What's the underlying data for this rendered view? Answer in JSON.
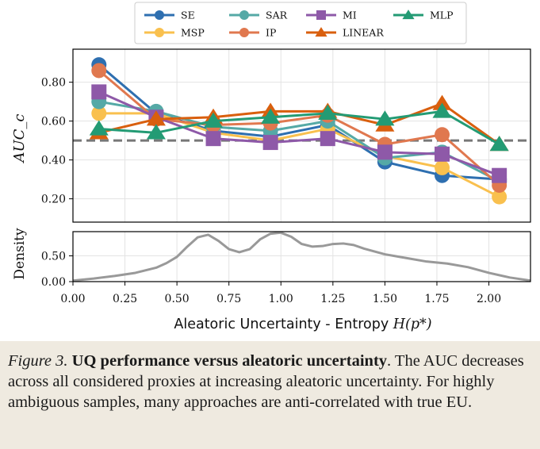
{
  "chart_data": [
    {
      "type": "line",
      "panel": "upper",
      "ylabel": "AUC_c",
      "ylim": [
        0.08,
        0.97
      ],
      "yticks": [
        0.2,
        0.4,
        0.6,
        0.8
      ],
      "ytick_labels": [
        "0.20",
        "0.40",
        "0.60",
        "0.80"
      ],
      "xlim": [
        0.0,
        2.2
      ],
      "grid": true,
      "reference_line": 0.5,
      "legend_position": "top",
      "x": [
        0.125,
        0.4,
        0.675,
        0.95,
        1.225,
        1.5,
        1.775,
        2.05
      ],
      "series": [
        {
          "name": "SE",
          "color": "#2e6fb0",
          "marker": "circle",
          "values": [
            0.89,
            0.64,
            0.55,
            0.52,
            0.58,
            0.39,
            0.32,
            0.3
          ]
        },
        {
          "name": "MSP",
          "color": "#f9c04e",
          "marker": "circle",
          "values": [
            0.64,
            0.64,
            0.54,
            0.5,
            0.56,
            0.42,
            0.36,
            0.21
          ]
        },
        {
          "name": "SAR",
          "color": "#55a9a6",
          "marker": "circle",
          "values": [
            0.7,
            0.65,
            0.57,
            0.55,
            0.6,
            0.41,
            0.44,
            0.29
          ]
        },
        {
          "name": "IP",
          "color": "#e0784f",
          "marker": "circle",
          "values": [
            0.86,
            0.61,
            0.58,
            0.59,
            0.63,
            0.48,
            0.53,
            0.27
          ]
        },
        {
          "name": "MI",
          "color": "#8e59a8",
          "marker": "square",
          "values": [
            0.75,
            0.62,
            0.51,
            0.49,
            0.51,
            0.44,
            0.43,
            0.32
          ]
        },
        {
          "name": "LINEAR",
          "color": "#d95f0e",
          "marker": "triangle",
          "values": [
            0.54,
            0.61,
            0.62,
            0.65,
            0.65,
            0.58,
            0.69,
            0.48
          ]
        },
        {
          "name": "MLP",
          "color": "#239b74",
          "marker": "triangle",
          "values": [
            0.56,
            0.54,
            0.6,
            0.62,
            0.64,
            0.61,
            0.65,
            0.48
          ]
        }
      ]
    },
    {
      "type": "line",
      "panel": "lower",
      "ylabel": "Density",
      "xlabel_prefix": "Aleatoric Uncertainty - Entropy ",
      "xlabel_math": "H(p*)",
      "ylim": [
        0.0,
        0.97
      ],
      "yticks": [
        0.0,
        0.5
      ],
      "ytick_labels": [
        "0.00",
        "0.50"
      ],
      "xlim": [
        0.0,
        2.2
      ],
      "xticks": [
        0.0,
        0.25,
        0.5,
        0.75,
        1.0,
        1.25,
        1.5,
        1.75,
        2.0
      ],
      "xtick_labels": [
        "0.00",
        "0.25",
        "0.50",
        "0.75",
        "1.00",
        "1.25",
        "1.50",
        "1.75",
        "2.00"
      ],
      "grid": true,
      "series": [
        {
          "name": "Density",
          "color": "#999999",
          "x": [
            0.0,
            0.1,
            0.2,
            0.3,
            0.4,
            0.45,
            0.5,
            0.55,
            0.6,
            0.65,
            0.7,
            0.75,
            0.8,
            0.85,
            0.9,
            0.95,
            1.0,
            1.05,
            1.1,
            1.15,
            1.2,
            1.25,
            1.3,
            1.35,
            1.4,
            1.5,
            1.6,
            1.7,
            1.8,
            1.9,
            2.0,
            2.1,
            2.2
          ],
          "values": [
            0.02,
            0.06,
            0.11,
            0.17,
            0.27,
            0.36,
            0.48,
            0.68,
            0.86,
            0.91,
            0.79,
            0.63,
            0.57,
            0.63,
            0.82,
            0.93,
            0.95,
            0.87,
            0.73,
            0.68,
            0.69,
            0.73,
            0.74,
            0.71,
            0.64,
            0.53,
            0.46,
            0.39,
            0.35,
            0.28,
            0.17,
            0.08,
            0.02
          ]
        }
      ]
    }
  ],
  "caption": {
    "label": "Figure 3.",
    "title": "UQ performance versus aleatoric uncertainty",
    "text": ". The AUC decreases across all considered proxies at increasing aleatoric uncertainty. For highly ambiguous samples, many approaches are anti-correlated with true EU."
  }
}
